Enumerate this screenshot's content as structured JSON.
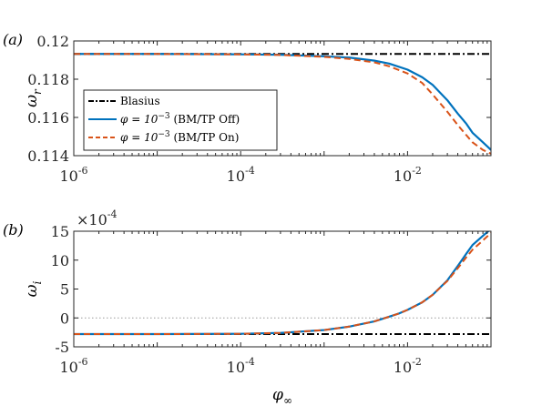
{
  "chart_data": [
    {
      "type": "line",
      "panel_label": "(a)",
      "ylabel": "ω_r",
      "xscale": "log",
      "xlim": [
        1e-06,
        0.1
      ],
      "ylim": [
        0.114,
        0.12
      ],
      "xticks": [
        1e-06,
        0.0001,
        0.01
      ],
      "xtick_labels": [
        "10",
        "10",
        "10"
      ],
      "xtick_exponents": [
        "-6",
        "-4",
        "-2"
      ],
      "yticks": [
        0.114,
        0.116,
        0.118,
        0.12
      ],
      "ytick_labels": [
        "0.114",
        "0.116",
        "0.118",
        "0.12"
      ],
      "grid": false,
      "legend_placement": "bottom-left",
      "series": [
        {
          "name": "Blasius",
          "color": "#000000",
          "style": "dashdot",
          "x": [
            1e-06,
            0.1
          ],
          "y": [
            0.11932,
            0.11932
          ]
        },
        {
          "name_math": "φ = 10",
          "name_exp": "−3",
          "name_tail": " (BM/TP Off)",
          "color": "#0072BD",
          "style": "solid",
          "x": [
            1e-06,
            1e-05,
            0.0001,
            0.0003,
            0.001,
            0.002,
            0.004,
            0.006,
            0.01,
            0.015,
            0.02,
            0.03,
            0.04,
            0.05,
            0.06,
            0.08,
            0.1
          ],
          "y": [
            0.11932,
            0.11932,
            0.1193,
            0.11928,
            0.1192,
            0.11913,
            0.11897,
            0.11882,
            0.1185,
            0.1181,
            0.1177,
            0.1169,
            0.1162,
            0.1157,
            0.1152,
            0.1147,
            0.1143
          ]
        },
        {
          "name_math": "φ = 10",
          "name_exp": "−3",
          "name_tail": " (BM/TP On)",
          "color": "#D95319",
          "style": "dashed",
          "x": [
            1e-06,
            1e-05,
            0.0001,
            0.0003,
            0.001,
            0.002,
            0.004,
            0.006,
            0.01,
            0.015,
            0.02,
            0.03,
            0.04,
            0.05,
            0.06,
            0.08,
            0.1
          ],
          "y": [
            0.11932,
            0.11932,
            0.1193,
            0.11927,
            0.11917,
            0.11906,
            0.11888,
            0.11868,
            0.1183,
            0.1178,
            0.1172,
            0.1163,
            0.1156,
            0.1151,
            0.1147,
            0.1143,
            0.1141
          ]
        }
      ]
    },
    {
      "type": "line",
      "panel_label": "(b)",
      "ylabel": "ω_i",
      "xlabel": "φ_∞",
      "xscale": "log",
      "xlim": [
        1e-06,
        0.1
      ],
      "ylim": [
        -5,
        15
      ],
      "y_multiplier": "×10",
      "y_multiplier_exp": "-4",
      "xticks": [
        1e-06,
        0.0001,
        0.01
      ],
      "xtick_labels": [
        "10",
        "10",
        "10"
      ],
      "xtick_exponents": [
        "-6",
        "-4",
        "-2"
      ],
      "yticks": [
        -5,
        0,
        5,
        10,
        15
      ],
      "ytick_labels": [
        "-5",
        "0",
        "5",
        "10",
        "15"
      ],
      "zero_line": true,
      "grid": false,
      "series": [
        {
          "name": "Blasius",
          "color": "#000000",
          "style": "dashdot",
          "x": [
            1e-06,
            0.1
          ],
          "y": [
            -2.8,
            -2.8
          ]
        },
        {
          "name": "BM/TP Off",
          "color": "#0072BD",
          "style": "solid",
          "x": [
            1e-06,
            1e-05,
            0.0001,
            0.0003,
            0.001,
            0.002,
            0.004,
            0.006,
            0.008,
            0.01,
            0.015,
            0.02,
            0.03,
            0.04,
            0.05,
            0.06,
            0.08,
            0.1
          ],
          "y": [
            -2.8,
            -2.8,
            -2.75,
            -2.6,
            -2.1,
            -1.5,
            -0.6,
            0.2,
            0.8,
            1.4,
            2.7,
            4.0,
            6.5,
            9.0,
            11.0,
            12.6,
            14.2,
            15.4
          ]
        },
        {
          "name": "BM/TP On",
          "color": "#D95319",
          "style": "dashed",
          "x": [
            1e-06,
            1e-05,
            0.0001,
            0.0003,
            0.001,
            0.002,
            0.004,
            0.006,
            0.008,
            0.01,
            0.015,
            0.02,
            0.03,
            0.04,
            0.05,
            0.06,
            0.08,
            0.1
          ],
          "y": [
            -2.8,
            -2.8,
            -2.75,
            -2.6,
            -2.1,
            -1.5,
            -0.6,
            0.2,
            0.8,
            1.4,
            2.7,
            4.0,
            6.4,
            8.6,
            10.4,
            11.8,
            13.4,
            14.7
          ]
        }
      ]
    }
  ]
}
